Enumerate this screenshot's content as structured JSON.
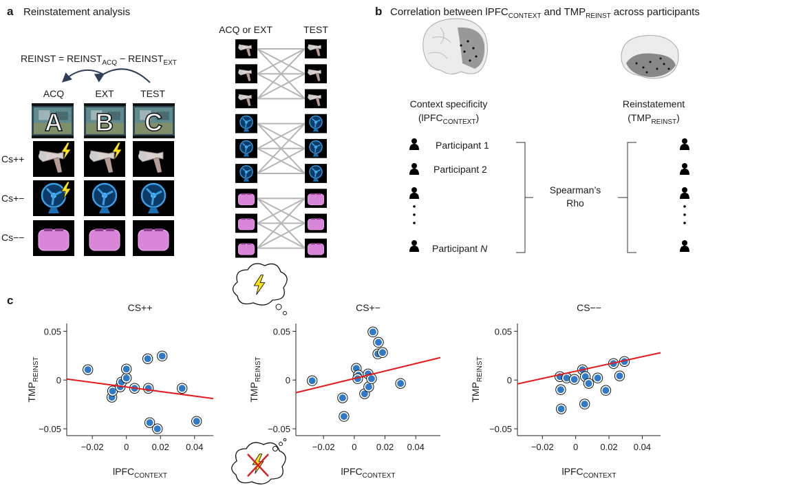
{
  "panel_a": {
    "letter": "a",
    "title": "Reinstatement analysis",
    "formula": {
      "lhs": "REINST = REINST",
      "sub1": "ACQ",
      "mid": "− REINST",
      "sub2": "EXT"
    },
    "phases": [
      "ACQ",
      "EXT",
      "TEST"
    ],
    "contexts": [
      "A",
      "B",
      "C"
    ],
    "stimuli": [
      "Cs++",
      "Cs+−",
      "Cs−−"
    ],
    "matrix_headers": [
      "ACQ or EXT",
      "TEST"
    ]
  },
  "panel_b": {
    "letter": "b",
    "title": {
      "part1": "Correlation between lPFC",
      "sub1": "CONTEXT",
      "part2": "and TMP",
      "sub2": "REINST",
      "part3": "across participants"
    },
    "left_label": "Context specificity",
    "left_sub": {
      "open": "(lPFC",
      "sub": "CONTEXT",
      "close": ")"
    },
    "right_label": "Reinstatement",
    "right_sub": {
      "open": "(TMP",
      "sub": "REINST",
      "close": ")"
    },
    "participants": [
      "Participant 1",
      "Participant 2"
    ],
    "participant_last": {
      "text": "Participant",
      "n": "N"
    },
    "method": [
      "Spearman’s",
      "Rho"
    ]
  },
  "panel_c": {
    "letter": "c"
  },
  "chart_data": [
    {
      "type": "scatter",
      "title": "CS++",
      "xlabel": "lPFC",
      "xlabel_sub": "CONTEXT",
      "ylabel": "TMP",
      "ylabel_sub": "REINST",
      "color": "#2f7ac8",
      "x": [
        -0.0226,
        -0.0085,
        -0.0081,
        -0.0036,
        -0.0028,
        0.0,
        0.0,
        0.0048,
        0.0125,
        0.0129,
        0.021,
        0.0137,
        0.0182,
        0.0327,
        0.0412
      ],
      "values": [
        0.0106,
        -0.0176,
        -0.0113,
        -0.007,
        -0.002,
        0.002,
        0.0113,
        -0.0085,
        0.0218,
        -0.0085,
        0.0246,
        -0.0437,
        -0.05,
        -0.0085,
        -0.0423
      ],
      "fit": {
        "x": [
          -0.035,
          0.051
        ],
        "y": [
          0.001,
          -0.019
        ]
      },
      "fit_color": "#e41a1c",
      "xlim": [
        -0.035,
        0.051
      ],
      "ylim": [
        -0.057,
        0.058
      ],
      "xticks": [
        {
          "value": -0.02,
          "label": "−0.02"
        },
        0,
        0.02,
        0.04
      ],
      "yticks": [
        {
          "value": -0.05,
          "label": "−0.05"
        },
        0,
        0.05
      ]
    },
    {
      "type": "scatter",
      "title": "CS+−",
      "xlabel": "lPFC",
      "xlabel_sub": "CONTEXT",
      "ylabel": "TMP",
      "ylabel_sub": "REINST",
      "color": "#2f7ac8",
      "x": [
        -0.0274,
        -0.0076,
        -0.0067,
        0.0013,
        0.0027,
        0.0022,
        0.0067,
        0.009,
        0.0094,
        0.0112,
        0.0121,
        0.0153,
        0.0157,
        0.0184,
        0.0301
      ],
      "values": [
        -0.0007,
        -0.0183,
        -0.0373,
        0.012,
        0.005,
        0.0014,
        -0.0141,
        0.0063,
        -0.007,
        0.0014,
        0.0493,
        0.0268,
        0.0387,
        0.0282,
        -0.0035
      ],
      "fit": {
        "x": [
          -0.038,
          0.056
        ],
        "y": [
          -0.013,
          0.023
        ]
      },
      "fit_color": "#e41a1c",
      "xlim": [
        -0.038,
        0.056
      ],
      "ylim": [
        -0.057,
        0.058
      ],
      "xticks": [
        {
          "value": -0.02,
          "label": "−0.02"
        },
        0,
        0.02,
        0.04
      ],
      "yticks": [
        {
          "value": -0.05,
          "label": "−0.05"
        },
        0,
        0.05
      ]
    },
    {
      "type": "scatter",
      "title": "CS−−",
      "xlabel": "lPFC",
      "xlabel_sub": "CONTEXT",
      "ylabel": "TMP",
      "ylabel_sub": "REINST",
      "color": "#2f7ac8",
      "x": [
        -0.0095,
        -0.009,
        -0.0087,
        -0.0054,
        -0.0008,
        0.0041,
        0.0058,
        0.0054,
        0.0078,
        0.0132,
        0.0181,
        0.0227,
        0.0264,
        0.0293
      ],
      "values": [
        0.0035,
        -0.0099,
        -0.0296,
        0.0021,
        0.0007,
        0.0106,
        0.0035,
        -0.0246,
        -0.0035,
        0.0021,
        -0.0106,
        0.0169,
        0.0042,
        0.019
      ],
      "fit": {
        "x": [
          -0.035,
          0.051
        ],
        "y": [
          -0.004,
          0.028
        ]
      },
      "fit_color": "#e41a1c",
      "xlim": [
        -0.035,
        0.051
      ],
      "ylim": [
        -0.057,
        0.058
      ],
      "xticks": [
        {
          "value": -0.02,
          "label": "−0.02"
        },
        0,
        0.02,
        0.04
      ],
      "yticks": [
        {
          "value": -0.05,
          "label": "−0.05"
        },
        0,
        0.05
      ]
    }
  ]
}
